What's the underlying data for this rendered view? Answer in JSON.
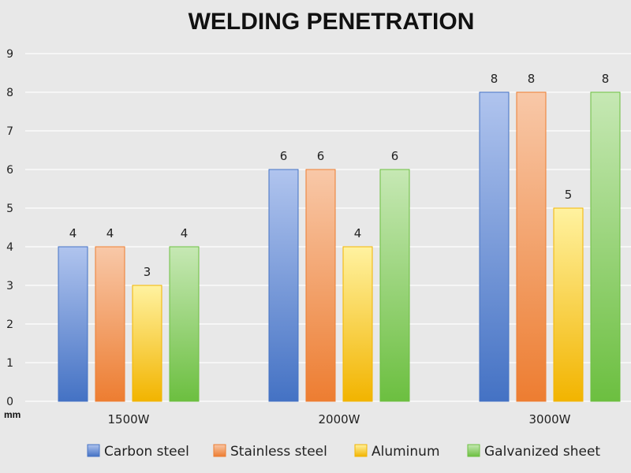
{
  "chart_data": {
    "type": "bar",
    "title": "WELDING PENETRATION",
    "ylabel_unit": "mm",
    "categories": [
      "1500W",
      "2000W",
      "3000W"
    ],
    "ylim": [
      0,
      9
    ],
    "yticks": [
      "0",
      "1",
      "2",
      "3",
      "4",
      "5",
      "6",
      "7",
      "8",
      "9"
    ],
    "grid": true,
    "legend_position": "bottom",
    "series": [
      {
        "name": "Carbon steel",
        "values": [
          4,
          6,
          8
        ],
        "color_top": "#b0c4ee",
        "color_bottom": "#4472c4"
      },
      {
        "name": "Stainless steel",
        "values": [
          4,
          6,
          8
        ],
        "color_top": "#f8c8a8",
        "color_bottom": "#ed7d31"
      },
      {
        "name": "Aluminum",
        "values": [
          3,
          4,
          5
        ],
        "color_top": "#fff2a0",
        "color_bottom": "#f2b400"
      },
      {
        "name": "Galvanized sheet",
        "values": [
          4,
          6,
          8
        ],
        "color_top": "#c6e8b4",
        "color_bottom": "#6cbf40"
      }
    ]
  }
}
